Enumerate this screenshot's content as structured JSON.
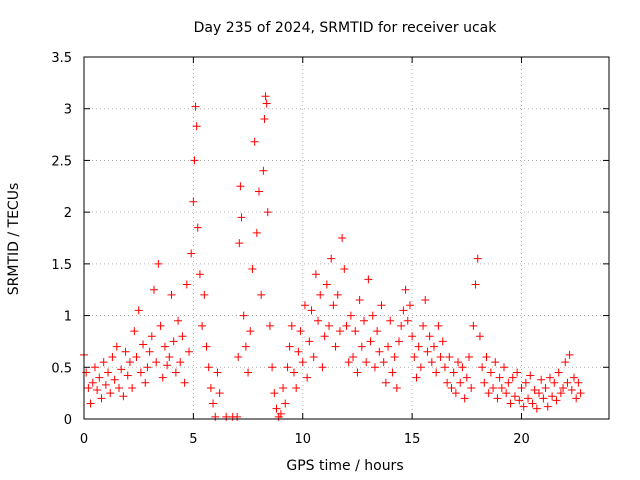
{
  "chart_data": {
    "type": "scatter",
    "title": "Day 235 of 2024, SRMTID for receiver ucak",
    "xlabel": "GPS time / hours",
    "ylabel": "SRMTID / TECUs",
    "xlim": [
      0,
      24
    ],
    "ylim": [
      0,
      3.5
    ],
    "x_ticks": [
      0,
      5,
      10,
      15,
      20
    ],
    "x_tick_labels": [
      "0",
      "5",
      "10",
      "15",
      "20"
    ],
    "y_ticks": [
      0,
      0.5,
      1,
      1.5,
      2,
      2.5,
      3,
      3.5
    ],
    "y_tick_labels": [
      "0",
      "0.5",
      "1",
      "1.5",
      "2",
      "2.5",
      "3",
      "3.5"
    ],
    "grid": true,
    "marker": "+",
    "color": "#ff0000",
    "series": [
      {
        "name": "SRMTID",
        "points": [
          [
            0.0,
            0.62
          ],
          [
            0.1,
            0.45
          ],
          [
            0.2,
            0.3
          ],
          [
            0.3,
            0.15
          ],
          [
            0.4,
            0.35
          ],
          [
            0.5,
            0.5
          ],
          [
            0.6,
            0.28
          ],
          [
            0.7,
            0.4
          ],
          [
            0.8,
            0.2
          ],
          [
            0.9,
            0.55
          ],
          [
            1.0,
            0.33
          ],
          [
            1.1,
            0.45
          ],
          [
            1.2,
            0.25
          ],
          [
            1.3,
            0.6
          ],
          [
            1.4,
            0.38
          ],
          [
            1.5,
            0.7
          ],
          [
            1.6,
            0.3
          ],
          [
            1.7,
            0.48
          ],
          [
            1.8,
            0.22
          ],
          [
            1.9,
            0.65
          ],
          [
            2.0,
            0.42
          ],
          [
            2.1,
            0.55
          ],
          [
            2.2,
            0.3
          ],
          [
            2.3,
            0.85
          ],
          [
            2.4,
            0.6
          ],
          [
            2.5,
            1.05
          ],
          [
            2.6,
            0.45
          ],
          [
            2.7,
            0.72
          ],
          [
            2.8,
            0.35
          ],
          [
            2.9,
            0.5
          ],
          [
            3.0,
            0.65
          ],
          [
            3.1,
            0.8
          ],
          [
            3.2,
            1.25
          ],
          [
            3.3,
            0.55
          ],
          [
            3.4,
            1.5
          ],
          [
            3.5,
            0.9
          ],
          [
            3.6,
            0.4
          ],
          [
            3.7,
            0.7
          ],
          [
            3.8,
            0.52
          ],
          [
            3.9,
            0.6
          ],
          [
            4.0,
            1.2
          ],
          [
            4.1,
            0.75
          ],
          [
            4.2,
            0.45
          ],
          [
            4.3,
            0.95
          ],
          [
            4.4,
            0.55
          ],
          [
            4.5,
            0.8
          ],
          [
            4.6,
            0.35
          ],
          [
            4.7,
            1.3
          ],
          [
            4.8,
            0.65
          ],
          [
            4.9,
            1.6
          ],
          [
            5.0,
            2.1
          ],
          [
            5.05,
            2.5
          ],
          [
            5.1,
            3.02
          ],
          [
            5.15,
            2.83
          ],
          [
            5.2,
            1.85
          ],
          [
            5.3,
            1.4
          ],
          [
            5.4,
            0.9
          ],
          [
            5.5,
            1.2
          ],
          [
            5.6,
            0.7
          ],
          [
            5.7,
            0.5
          ],
          [
            5.8,
            0.3
          ],
          [
            5.9,
            0.15
          ],
          [
            6.0,
            0.02
          ],
          [
            6.1,
            0.45
          ],
          [
            6.2,
            0.25
          ],
          [
            6.5,
            0.02
          ],
          [
            6.8,
            0.02
          ],
          [
            7.0,
            0.02
          ],
          [
            7.05,
            0.6
          ],
          [
            7.1,
            1.7
          ],
          [
            7.15,
            2.25
          ],
          [
            7.2,
            1.95
          ],
          [
            7.3,
            1.0
          ],
          [
            7.4,
            0.7
          ],
          [
            7.5,
            0.45
          ],
          [
            7.6,
            0.85
          ],
          [
            7.7,
            1.45
          ],
          [
            7.8,
            2.68
          ],
          [
            7.9,
            1.8
          ],
          [
            8.0,
            2.2
          ],
          [
            8.1,
            1.2
          ],
          [
            8.2,
            2.4
          ],
          [
            8.25,
            2.9
          ],
          [
            8.3,
            3.12
          ],
          [
            8.35,
            3.05
          ],
          [
            8.4,
            2.0
          ],
          [
            8.5,
            0.9
          ],
          [
            8.6,
            0.5
          ],
          [
            8.7,
            0.25
          ],
          [
            8.8,
            0.1
          ],
          [
            8.9,
            0.02
          ],
          [
            9.0,
            0.05
          ],
          [
            9.1,
            0.3
          ],
          [
            9.2,
            0.15
          ],
          [
            9.3,
            0.5
          ],
          [
            9.4,
            0.7
          ],
          [
            9.5,
            0.9
          ],
          [
            9.6,
            0.45
          ],
          [
            9.7,
            0.3
          ],
          [
            9.8,
            0.65
          ],
          [
            9.9,
            0.85
          ],
          [
            10.0,
            0.55
          ],
          [
            10.1,
            1.1
          ],
          [
            10.2,
            0.4
          ],
          [
            10.3,
            0.75
          ],
          [
            10.4,
            1.05
          ],
          [
            10.5,
            0.6
          ],
          [
            10.6,
            1.4
          ],
          [
            10.7,
            0.95
          ],
          [
            10.8,
            1.2
          ],
          [
            10.9,
            0.5
          ],
          [
            11.0,
            0.8
          ],
          [
            11.1,
            1.3
          ],
          [
            11.2,
            0.9
          ],
          [
            11.3,
            1.55
          ],
          [
            11.4,
            1.1
          ],
          [
            11.5,
            0.7
          ],
          [
            11.6,
            1.2
          ],
          [
            11.7,
            0.85
          ],
          [
            11.8,
            1.75
          ],
          [
            11.9,
            1.45
          ],
          [
            12.0,
            0.9
          ],
          [
            12.1,
            0.55
          ],
          [
            12.2,
            1.0
          ],
          [
            12.3,
            0.6
          ],
          [
            12.4,
            0.85
          ],
          [
            12.5,
            0.45
          ],
          [
            12.6,
            1.15
          ],
          [
            12.7,
            0.7
          ],
          [
            12.8,
            0.95
          ],
          [
            12.9,
            0.55
          ],
          [
            13.0,
            1.35
          ],
          [
            13.1,
            0.75
          ],
          [
            13.2,
            1.0
          ],
          [
            13.3,
            0.5
          ],
          [
            13.4,
            0.85
          ],
          [
            13.5,
            0.65
          ],
          [
            13.6,
            1.1
          ],
          [
            13.7,
            0.55
          ],
          [
            13.8,
            0.35
          ],
          [
            13.9,
            0.7
          ],
          [
            14.0,
            0.95
          ],
          [
            14.1,
            0.45
          ],
          [
            14.2,
            0.6
          ],
          [
            14.3,
            0.3
          ],
          [
            14.4,
            0.75
          ],
          [
            14.5,
            0.9
          ],
          [
            14.6,
            1.05
          ],
          [
            14.7,
            1.25
          ],
          [
            14.8,
            0.95
          ],
          [
            14.9,
            1.1
          ],
          [
            15.0,
            0.8
          ],
          [
            15.1,
            0.6
          ],
          [
            15.2,
            0.4
          ],
          [
            15.3,
            0.7
          ],
          [
            15.4,
            0.5
          ],
          [
            15.5,
            0.9
          ],
          [
            15.6,
            1.15
          ],
          [
            15.7,
            0.65
          ],
          [
            15.8,
            0.8
          ],
          [
            15.9,
            0.55
          ],
          [
            16.0,
            0.7
          ],
          [
            16.1,
            0.45
          ],
          [
            16.2,
            0.9
          ],
          [
            16.3,
            0.6
          ],
          [
            16.4,
            0.75
          ],
          [
            16.5,
            0.5
          ],
          [
            16.6,
            0.35
          ],
          [
            16.7,
            0.6
          ],
          [
            16.8,
            0.3
          ],
          [
            16.9,
            0.45
          ],
          [
            17.0,
            0.25
          ],
          [
            17.1,
            0.55
          ],
          [
            17.2,
            0.35
          ],
          [
            17.3,
            0.5
          ],
          [
            17.4,
            0.2
          ],
          [
            17.5,
            0.4
          ],
          [
            17.6,
            0.6
          ],
          [
            17.7,
            0.3
          ],
          [
            17.8,
            0.9
          ],
          [
            17.9,
            1.3
          ],
          [
            18.0,
            1.55
          ],
          [
            18.1,
            0.8
          ],
          [
            18.2,
            0.5
          ],
          [
            18.3,
            0.35
          ],
          [
            18.4,
            0.6
          ],
          [
            18.5,
            0.25
          ],
          [
            18.6,
            0.45
          ],
          [
            18.7,
            0.3
          ],
          [
            18.8,
            0.55
          ],
          [
            18.9,
            0.2
          ],
          [
            19.0,
            0.4
          ],
          [
            19.1,
            0.3
          ],
          [
            19.2,
            0.5
          ],
          [
            19.3,
            0.25
          ],
          [
            19.4,
            0.35
          ],
          [
            19.5,
            0.15
          ],
          [
            19.6,
            0.4
          ],
          [
            19.7,
            0.22
          ],
          [
            19.8,
            0.45
          ],
          [
            19.9,
            0.18
          ],
          [
            20.0,
            0.3
          ],
          [
            20.1,
            0.12
          ],
          [
            20.2,
            0.35
          ],
          [
            20.3,
            0.2
          ],
          [
            20.4,
            0.42
          ],
          [
            20.5,
            0.15
          ],
          [
            20.6,
            0.28
          ],
          [
            20.7,
            0.1
          ],
          [
            20.8,
            0.25
          ],
          [
            20.9,
            0.38
          ],
          [
            21.0,
            0.2
          ],
          [
            21.1,
            0.3
          ],
          [
            21.2,
            0.12
          ],
          [
            21.3,
            0.4
          ],
          [
            21.4,
            0.22
          ],
          [
            21.5,
            0.35
          ],
          [
            21.6,
            0.18
          ],
          [
            21.7,
            0.45
          ],
          [
            21.8,
            0.25
          ],
          [
            21.9,
            0.3
          ],
          [
            22.0,
            0.55
          ],
          [
            22.1,
            0.35
          ],
          [
            22.2,
            0.62
          ],
          [
            22.3,
            0.28
          ],
          [
            22.4,
            0.4
          ],
          [
            22.5,
            0.2
          ],
          [
            22.6,
            0.35
          ],
          [
            22.7,
            0.25
          ]
        ]
      }
    ]
  }
}
